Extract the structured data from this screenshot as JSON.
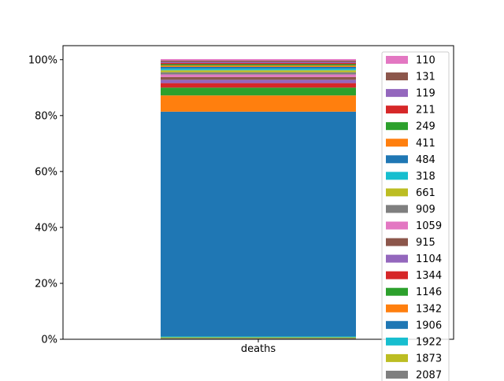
{
  "chart_data": {
    "type": "bar",
    "stacked": true,
    "normalized": true,
    "categories": [
      "deaths"
    ],
    "ylim": [
      0,
      105
    ],
    "yticks": [
      "0%",
      "20%",
      "40%",
      "60%",
      "80%",
      "100%"
    ],
    "ytick_values": [
      0,
      20,
      40,
      60,
      80,
      100
    ],
    "legend_position": "right, overlapping bar",
    "series": [
      {
        "name": "2087",
        "values": [
          0.4
        ],
        "color": "#7f7f7f"
      },
      {
        "name": "1873",
        "values": [
          0.3
        ],
        "color": "#bcbd22"
      },
      {
        "name": "1922",
        "values": [
          0.3
        ],
        "color": "#17becf"
      },
      {
        "name": "1906",
        "values": [
          80.4
        ],
        "color": "#1f77b4"
      },
      {
        "name": "1342",
        "values": [
          5.8
        ],
        "color": "#ff7f0e"
      },
      {
        "name": "1146",
        "values": [
          2.8
        ],
        "color": "#2ca02c"
      },
      {
        "name": "1344",
        "values": [
          1.6
        ],
        "color": "#d62728"
      },
      {
        "name": "1104",
        "values": [
          1.2
        ],
        "color": "#9467bd"
      },
      {
        "name": "915",
        "values": [
          1.0
        ],
        "color": "#8c564b"
      },
      {
        "name": "1059",
        "values": [
          0.9
        ],
        "color": "#e377c2"
      },
      {
        "name": "909",
        "values": [
          0.8
        ],
        "color": "#7f7f7f"
      },
      {
        "name": "661",
        "values": [
          0.7
        ],
        "color": "#bcbd22"
      },
      {
        "name": "318",
        "values": [
          0.6
        ],
        "color": "#17becf"
      },
      {
        "name": "484",
        "values": [
          0.6
        ],
        "color": "#1f77b4"
      },
      {
        "name": "411",
        "values": [
          0.5
        ],
        "color": "#ff7f0e"
      },
      {
        "name": "249",
        "values": [
          0.5
        ],
        "color": "#2ca02c"
      },
      {
        "name": "211",
        "values": [
          0.4
        ],
        "color": "#d62728"
      },
      {
        "name": "119",
        "values": [
          0.4
        ],
        "color": "#9467bd"
      },
      {
        "name": "131",
        "values": [
          0.5
        ],
        "color": "#8c564b"
      },
      {
        "name": "110",
        "values": [
          0.5
        ],
        "color": "#e377c2"
      }
    ],
    "legend_order": [
      "110",
      "131",
      "119",
      "211",
      "249",
      "411",
      "484",
      "318",
      "661",
      "909",
      "1059",
      "915",
      "1104",
      "1344",
      "1146",
      "1342",
      "1906",
      "1922",
      "1873",
      "2087"
    ]
  }
}
